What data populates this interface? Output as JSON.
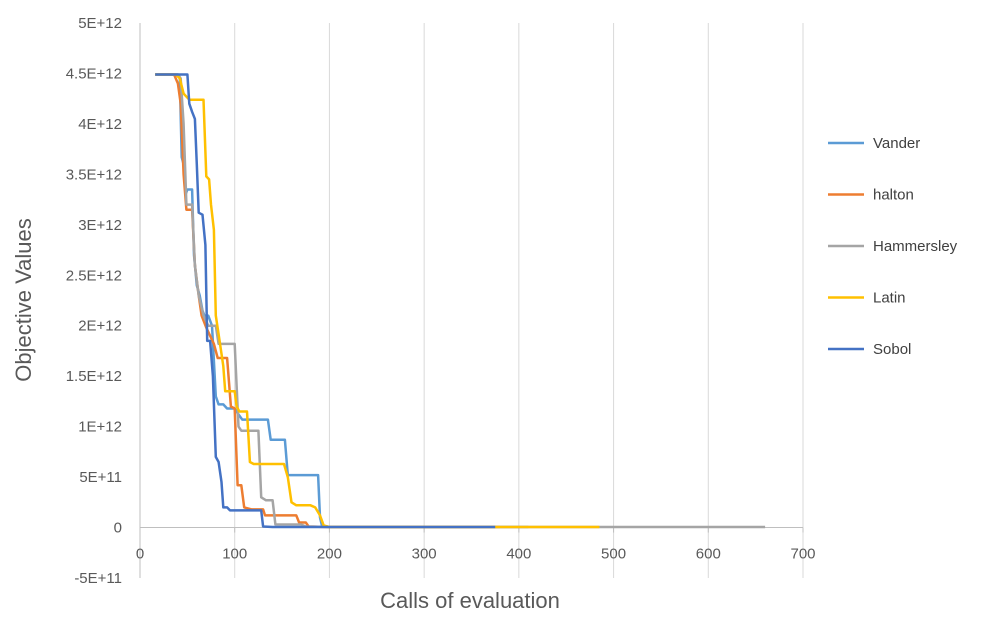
{
  "chart_data": {
    "type": "line",
    "title": "",
    "xlabel": "Calls of evaluation",
    "ylabel": "Objective Values",
    "xlim": [
      0,
      700
    ],
    "ylim": [
      -500000000000,
      5000000000000
    ],
    "x_ticks": [
      0,
      100,
      200,
      300,
      400,
      500,
      600,
      700
    ],
    "x_tick_labels": [
      "0",
      "100",
      "200",
      "300",
      "400",
      "500",
      "600",
      "700"
    ],
    "y_ticks": [
      -500000000000,
      0,
      500000000000,
      1000000000000,
      1500000000000,
      2000000000000,
      2500000000000,
      3000000000000,
      3500000000000,
      4000000000000,
      4500000000000,
      5000000000000
    ],
    "y_tick_labels": [
      "-5E+11",
      "0",
      "5E+11",
      "1E+12",
      "1.5E+12",
      "2E+12",
      "2.5E+12",
      "3E+12",
      "3.5E+12",
      "4E+12",
      "4.5E+12",
      "5E+12"
    ],
    "grid": "vertical",
    "legend_position": "right",
    "series": [
      {
        "name": "Vander",
        "color": "#5B9BD5",
        "points": [
          [
            16,
            4490000000000.0
          ],
          [
            40,
            4490000000000.0
          ],
          [
            42,
            4450000000000.0
          ],
          [
            44,
            3670000000000.0
          ],
          [
            46,
            3600000000000.0
          ],
          [
            48,
            3300000000000.0
          ],
          [
            50,
            3350000000000.0
          ],
          [
            55,
            3350000000000.0
          ],
          [
            57,
            2700000000000.0
          ],
          [
            60,
            2400000000000.0
          ],
          [
            63,
            2300000000000.0
          ],
          [
            66,
            2150000000000.0
          ],
          [
            68,
            2100000000000.0
          ],
          [
            72,
            2100000000000.0
          ],
          [
            76,
            2000000000000.0
          ],
          [
            80,
            1300000000000.0
          ],
          [
            83,
            1220000000000.0
          ],
          [
            88,
            1220000000000.0
          ],
          [
            92,
            1180000000000.0
          ],
          [
            100,
            1180000000000.0
          ],
          [
            104,
            1120000000000.0
          ],
          [
            108,
            1070000000000.0
          ],
          [
            135,
            1070000000000.0
          ],
          [
            138,
            870000000000.0
          ],
          [
            153,
            870000000000.0
          ],
          [
            156,
            520000000000.0
          ],
          [
            188,
            520000000000.0
          ],
          [
            190,
            100000000000.0
          ],
          [
            192,
            20000000000.0
          ],
          [
            200,
            5000000000.0
          ],
          [
            400,
            5000000000.0
          ],
          [
            410,
            5000000000.0
          ]
        ]
      },
      {
        "name": "halton",
        "color": "#ED7D31",
        "points": [
          [
            16,
            4490000000000.0
          ],
          [
            36,
            4490000000000.0
          ],
          [
            40,
            4400000000000.0
          ],
          [
            43,
            4200000000000.0
          ],
          [
            46,
            3500000000000.0
          ],
          [
            49,
            3150000000000.0
          ],
          [
            55,
            3150000000000.0
          ],
          [
            58,
            2600000000000.0
          ],
          [
            62,
            2300000000000.0
          ],
          [
            65,
            2100000000000.0
          ],
          [
            70,
            1980000000000.0
          ],
          [
            78,
            1820000000000.0
          ],
          [
            82,
            1680000000000.0
          ],
          [
            92,
            1680000000000.0
          ],
          [
            96,
            1200000000000.0
          ],
          [
            100,
            1180000000000.0
          ],
          [
            103,
            420000000000.0
          ],
          [
            107,
            420000000000.0
          ],
          [
            110,
            200000000000.0
          ],
          [
            118,
            180000000000.0
          ],
          [
            130,
            180000000000.0
          ],
          [
            132,
            120000000000.0
          ],
          [
            165,
            120000000000.0
          ],
          [
            168,
            50000000000.0
          ],
          [
            175,
            50000000000.0
          ],
          [
            178,
            10000000000.0
          ],
          [
            200,
            5000000000.0
          ],
          [
            380,
            5000000000.0
          ]
        ]
      },
      {
        "name": "Hammersley",
        "color": "#A5A5A5",
        "points": [
          [
            16,
            4490000000000.0
          ],
          [
            40,
            4490000000000.0
          ],
          [
            43,
            4450000000000.0
          ],
          [
            46,
            4000000000000.0
          ],
          [
            49,
            3200000000000.0
          ],
          [
            55,
            3200000000000.0
          ],
          [
            58,
            2600000000000.0
          ],
          [
            62,
            2300000000000.0
          ],
          [
            67,
            2100000000000.0
          ],
          [
            72,
            2000000000000.0
          ],
          [
            80,
            2000000000000.0
          ],
          [
            83,
            1820000000000.0
          ],
          [
            100,
            1820000000000.0
          ],
          [
            104,
            1000000000000.0
          ],
          [
            107,
            960000000000.0
          ],
          [
            125,
            960000000000.0
          ],
          [
            128,
            300000000000.0
          ],
          [
            133,
            270000000000.0
          ],
          [
            140,
            270000000000.0
          ],
          [
            143,
            30000000000.0
          ],
          [
            170,
            30000000000.0
          ],
          [
            175,
            10000000000.0
          ],
          [
            200,
            5000000000.0
          ],
          [
            660,
            5000000000.0
          ]
        ]
      },
      {
        "name": "Latin",
        "color": "#FFC000",
        "points": [
          [
            16,
            4490000000000.0
          ],
          [
            38,
            4490000000000.0
          ],
          [
            42,
            4450000000000.0
          ],
          [
            46,
            4300000000000.0
          ],
          [
            52,
            4240000000000.0
          ],
          [
            67,
            4240000000000.0
          ],
          [
            70,
            3480000000000.0
          ],
          [
            73,
            3450000000000.0
          ],
          [
            75,
            3200000000000.0
          ],
          [
            78,
            2950000000000.0
          ],
          [
            80,
            2100000000000.0
          ],
          [
            84,
            1850000000000.0
          ],
          [
            88,
            1600000000000.0
          ],
          [
            90,
            1350000000000.0
          ],
          [
            100,
            1350000000000.0
          ],
          [
            102,
            1200000000000.0
          ],
          [
            105,
            1150000000000.0
          ],
          [
            113,
            1150000000000.0
          ],
          [
            116,
            650000000000.0
          ],
          [
            120,
            630000000000.0
          ],
          [
            152,
            630000000000.0
          ],
          [
            156,
            500000000000.0
          ],
          [
            160,
            250000000000.0
          ],
          [
            165,
            220000000000.0
          ],
          [
            180,
            220000000000.0
          ],
          [
            185,
            200000000000.0
          ],
          [
            190,
            120000000000.0
          ],
          [
            194,
            20000000000.0
          ],
          [
            200,
            5000000000.0
          ],
          [
            485,
            5000000000.0
          ]
        ]
      },
      {
        "name": "Sobol",
        "color": "#4472C4",
        "points": [
          [
            16,
            4490000000000.0
          ],
          [
            50,
            4490000000000.0
          ],
          [
            52,
            4200000000000.0
          ],
          [
            55,
            4120000000000.0
          ],
          [
            58,
            4050000000000.0
          ],
          [
            60,
            3600000000000.0
          ],
          [
            62,
            3120000000000.0
          ],
          [
            66,
            3100000000000.0
          ],
          [
            69,
            2800000000000.0
          ],
          [
            71,
            1850000000000.0
          ],
          [
            74,
            1850000000000.0
          ],
          [
            77,
            1500000000000.0
          ],
          [
            80,
            700000000000.0
          ],
          [
            83,
            650000000000.0
          ],
          [
            86,
            450000000000.0
          ],
          [
            88,
            200000000000.0
          ],
          [
            92,
            200000000000.0
          ],
          [
            95,
            170000000000.0
          ],
          [
            128,
            170000000000.0
          ],
          [
            130,
            10000000000.0
          ],
          [
            140,
            5000000000.0
          ],
          [
            375,
            5000000000.0
          ]
        ]
      }
    ]
  }
}
